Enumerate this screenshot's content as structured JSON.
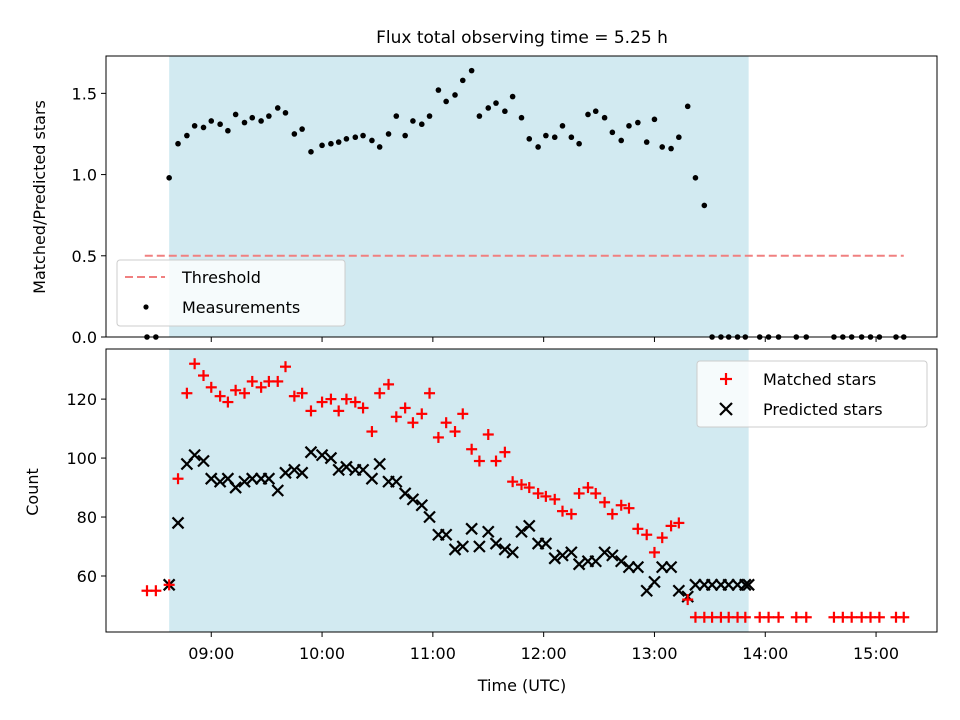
{
  "title": "Flux total observing time = 5.25 h",
  "xlabel": "Time (UTC)",
  "x_ticks": [
    "09:00",
    "10:00",
    "11:00",
    "12:00",
    "13:00",
    "14:00",
    "15:00"
  ],
  "x_unit": "hours UTC",
  "shaded_span": [
    8.62,
    13.85
  ],
  "colors": {
    "shade": "#add8e6",
    "threshold": "#f08080",
    "matched": "#ff0000",
    "predicted": "#000000",
    "measurements": "#000000"
  },
  "chart_data": [
    {
      "type": "scatter",
      "ylabel": "Matched/Predicted stars",
      "ylim": [
        0,
        1.73
      ],
      "xlim": [
        8.05,
        15.55
      ],
      "y_ticks": [
        "0.0",
        "0.5",
        "1.0",
        "1.5"
      ],
      "legend": {
        "placement": "lower-left",
        "entries": [
          "Threshold",
          "Measurements"
        ]
      },
      "threshold": {
        "name": "Threshold",
        "value": 0.5,
        "x": [
          8.4,
          15.25
        ]
      },
      "series": [
        {
          "name": "Measurements",
          "x": [
            8.42,
            8.5,
            8.62,
            8.7,
            8.78,
            8.85,
            8.93,
            9.0,
            9.08,
            9.15,
            9.22,
            9.3,
            9.37,
            9.45,
            9.52,
            9.6,
            9.67,
            9.75,
            9.82,
            9.9,
            10.0,
            10.08,
            10.15,
            10.22,
            10.3,
            10.37,
            10.45,
            10.52,
            10.6,
            10.67,
            10.75,
            10.82,
            10.9,
            10.97,
            11.05,
            11.12,
            11.2,
            11.27,
            11.35,
            11.42,
            11.5,
            11.57,
            11.65,
            11.72,
            11.8,
            11.87,
            11.95,
            12.02,
            12.1,
            12.17,
            12.25,
            12.32,
            12.4,
            12.47,
            12.55,
            12.62,
            12.7,
            12.77,
            12.85,
            12.93,
            13.0,
            13.07,
            13.15,
            13.22,
            13.3,
            13.37,
            13.45,
            13.52,
            13.6,
            13.67,
            13.75,
            13.82,
            13.95,
            14.03,
            14.12,
            14.28,
            14.37,
            14.62,
            14.7,
            14.78,
            14.87,
            14.95,
            15.03,
            15.18,
            15.25
          ],
          "y": [
            0,
            0,
            0.98,
            1.19,
            1.24,
            1.3,
            1.29,
            1.33,
            1.31,
            1.27,
            1.37,
            1.32,
            1.35,
            1.33,
            1.36,
            1.41,
            1.38,
            1.25,
            1.28,
            1.14,
            1.18,
            1.19,
            1.2,
            1.22,
            1.23,
            1.24,
            1.21,
            1.17,
            1.25,
            1.36,
            1.24,
            1.33,
            1.31,
            1.36,
            1.52,
            1.45,
            1.49,
            1.58,
            1.64,
            1.36,
            1.41,
            1.44,
            1.39,
            1.48,
            1.35,
            1.22,
            1.17,
            1.24,
            1.23,
            1.3,
            1.23,
            1.19,
            1.37,
            1.39,
            1.35,
            1.26,
            1.21,
            1.3,
            1.32,
            1.2,
            1.34,
            1.17,
            1.16,
            1.23,
            1.42,
            0.98,
            0.81,
            0,
            0,
            0,
            0,
            0,
            0,
            0,
            0,
            0,
            0,
            0,
            0,
            0,
            0,
            0,
            0,
            0,
            0
          ]
        }
      ]
    },
    {
      "type": "scatter",
      "ylabel": "Count",
      "ylim": [
        41,
        137
      ],
      "xlim": [
        8.05,
        15.55
      ],
      "y_ticks": [
        "60",
        "80",
        "100",
        "120"
      ],
      "legend": {
        "placement": "upper-right",
        "entries": [
          "Matched stars",
          "Predicted stars"
        ]
      },
      "series": [
        {
          "name": "Matched stars",
          "x": [
            8.42,
            8.5,
            8.62,
            8.7,
            8.78,
            8.85,
            8.93,
            9.0,
            9.08,
            9.15,
            9.22,
            9.3,
            9.37,
            9.45,
            9.52,
            9.6,
            9.67,
            9.75,
            9.82,
            9.9,
            10.0,
            10.08,
            10.15,
            10.22,
            10.3,
            10.37,
            10.45,
            10.52,
            10.6,
            10.67,
            10.75,
            10.82,
            10.9,
            10.97,
            11.05,
            11.12,
            11.2,
            11.27,
            11.35,
            11.42,
            11.5,
            11.57,
            11.65,
            11.72,
            11.8,
            11.87,
            11.95,
            12.02,
            12.1,
            12.17,
            12.25,
            12.32,
            12.4,
            12.47,
            12.55,
            12.62,
            12.7,
            12.77,
            12.85,
            12.93,
            13.0,
            13.07,
            13.15,
            13.22,
            13.3,
            13.37,
            13.45,
            13.52,
            13.6,
            13.67,
            13.75,
            13.82,
            13.95,
            14.03,
            14.12,
            14.28,
            14.37,
            14.62,
            14.7,
            14.78,
            14.87,
            14.95,
            15.03,
            15.18,
            15.25
          ],
          "y": [
            55,
            55,
            57,
            93,
            122,
            132,
            128,
            124,
            121,
            119,
            123,
            122,
            126,
            124,
            126,
            126,
            131,
            121,
            122,
            116,
            119,
            120,
            116,
            120,
            119,
            117,
            109,
            122,
            125,
            114,
            117,
            112,
            115,
            122,
            107,
            112,
            109,
            115,
            103,
            99,
            108,
            99,
            102,
            92,
            91,
            90,
            88,
            87,
            86,
            82,
            81,
            88,
            90,
            88,
            85,
            81,
            84,
            83,
            76,
            74,
            68,
            73,
            77,
            78,
            52,
            46,
            46,
            46,
            46,
            46,
            46,
            46,
            46,
            46,
            46,
            46,
            46,
            46,
            46,
            46,
            46,
            46,
            46,
            46,
            46
          ],
          "x_full": true
        },
        {
          "name": "Predicted stars",
          "x": [
            8.62,
            8.7,
            8.78,
            8.85,
            8.93,
            9.0,
            9.08,
            9.15,
            9.22,
            9.3,
            9.37,
            9.45,
            9.52,
            9.6,
            9.67,
            9.75,
            9.82,
            9.9,
            10.0,
            10.08,
            10.15,
            10.22,
            10.3,
            10.37,
            10.45,
            10.52,
            10.6,
            10.67,
            10.75,
            10.82,
            10.9,
            10.97,
            11.05,
            11.12,
            11.2,
            11.27,
            11.35,
            11.42,
            11.5,
            11.57,
            11.65,
            11.72,
            11.8,
            11.87,
            11.95,
            12.02,
            12.1,
            12.17,
            12.25,
            12.32,
            12.4,
            12.47,
            12.55,
            12.62,
            12.7,
            12.77,
            12.85,
            12.93,
            13.0,
            13.07,
            13.15,
            13.22,
            13.3,
            13.37,
            13.45,
            13.52,
            13.6,
            13.67,
            13.75,
            13.82,
            13.85
          ],
          "y": [
            57,
            78,
            98,
            101,
            99,
            93,
            92,
            93,
            90,
            92,
            93,
            93,
            93,
            89,
            95,
            96,
            95,
            102,
            101,
            100,
            96,
            97,
            96,
            96,
            93,
            98,
            92,
            92,
            88,
            86,
            84,
            80,
            74,
            74,
            69,
            70,
            76,
            70,
            75,
            71,
            69,
            68,
            75,
            77,
            71,
            71,
            66,
            67,
            68,
            64,
            65,
            65,
            68,
            67,
            65,
            63,
            63,
            55,
            58,
            63,
            63,
            55,
            53,
            57,
            57,
            57,
            57,
            57,
            57,
            57,
            57
          ]
        }
      ]
    }
  ]
}
